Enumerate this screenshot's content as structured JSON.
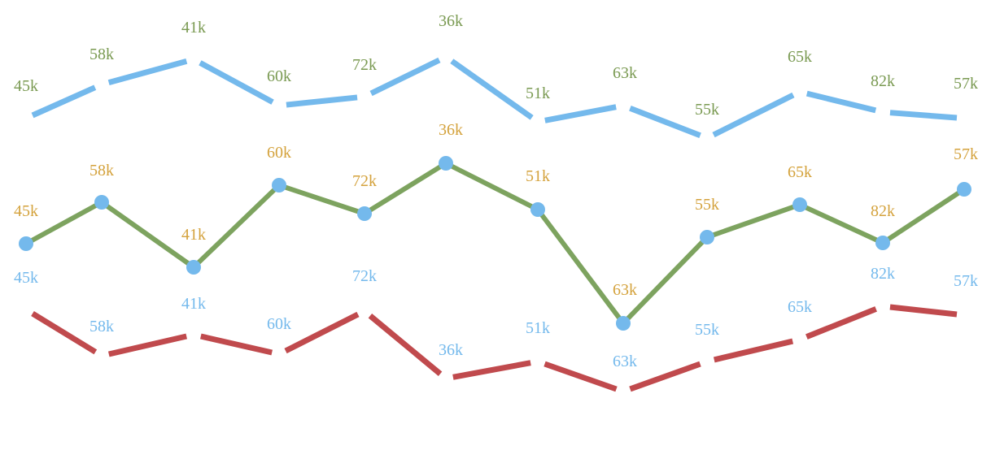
{
  "chart_data": {
    "type": "line",
    "title": "",
    "xlabel": "",
    "ylabel": "",
    "grid": false,
    "legend": "none",
    "x": [
      1,
      2,
      3,
      4,
      5,
      6,
      7,
      8,
      9,
      10,
      11,
      12
    ],
    "series": [
      {
        "color": "#74b9ec",
        "label_color": "#7a9a52",
        "line_style": "broken",
        "markers": false,
        "values": [
          45,
          58,
          41,
          60,
          72,
          36,
          51,
          63,
          55,
          65,
          82,
          57
        ],
        "value_labels": [
          "45k",
          "58k",
          "41k",
          "60k",
          "72k",
          "36k",
          "51k",
          "63k",
          "55k",
          "65k",
          "82k",
          "57k"
        ],
        "label_position": "above"
      },
      {
        "color": "#7da35f",
        "marker_color": "#74b9ec",
        "label_color": "#d4a23c",
        "line_style": "solid",
        "markers": true,
        "values": [
          45,
          58,
          41,
          60,
          72,
          36,
          51,
          63,
          55,
          65,
          82,
          57
        ],
        "value_labels": [
          "45k",
          "58k",
          "41k",
          "60k",
          "72k",
          "36k",
          "51k",
          "63k",
          "55k",
          "65k",
          "82k",
          "57k"
        ],
        "label_position": "above"
      },
      {
        "color": "#c04a4d",
        "label_color": "#74b9ec",
        "line_style": "broken",
        "markers": false,
        "values": [
          45,
          58,
          41,
          60,
          72,
          36,
          51,
          63,
          55,
          65,
          82,
          57
        ],
        "value_labels": [
          "45k",
          "58k",
          "41k",
          "60k",
          "72k",
          "36k",
          "51k",
          "63k",
          "55k",
          "65k",
          "82k",
          "57k"
        ],
        "label_position": "above"
      }
    ]
  }
}
